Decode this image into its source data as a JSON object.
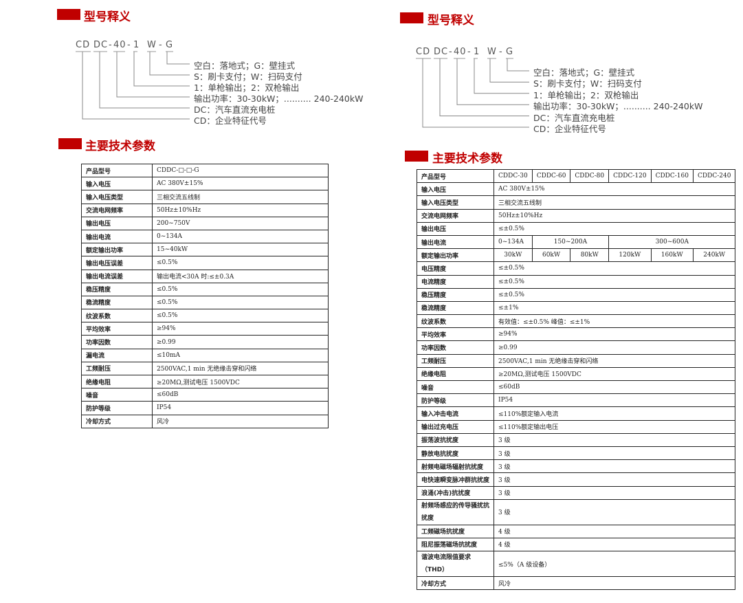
{
  "sections": {
    "model_title": "型号释义",
    "params_title": "主要技术参数"
  },
  "code": {
    "cd": "CD",
    "dc": "DC",
    "dash1": "-",
    "p40": "40",
    "dash2": "-",
    "one": "1",
    "w": "W",
    "dash3": "-",
    "g": "G"
  },
  "legend": [
    "空白：落地式；G：壁挂式",
    "S：刷卡支付；W：扫码支付",
    "1：单枪输出；2：双枪输出",
    "输出功率：30-30kW；.......... 240-240kW",
    "DC：汽车直流充电桩",
    "CD：企业特征代号"
  ],
  "accent": "#c00000",
  "left_table": [
    [
      "产品型号",
      "CDDC-□-□-G"
    ],
    [
      "输入电压",
      "AC   380V±15%"
    ],
    [
      "输入电压类型",
      "三相交流五线制"
    ],
    [
      "交流电网频率",
      "50Hz±10%Hz"
    ],
    [
      "输出电压",
      "200~750V"
    ],
    [
      "输出电流",
      "0~134A"
    ],
    [
      "额定输出功率",
      "15~40kW"
    ],
    [
      "输出电压误差",
      "≤0.5%"
    ],
    [
      "输出电流误差",
      "输出电流<30A 时:≤±0.3A"
    ],
    [
      "稳压精度",
      "≤0.5%"
    ],
    [
      "稳流精度",
      "≤0.5%"
    ],
    [
      "纹波系数",
      "≤0.5%"
    ],
    [
      "平均效率",
      "≥94%"
    ],
    [
      "功率因数",
      "≥0.99"
    ],
    [
      "漏电流",
      "≤10mA"
    ],
    [
      "工频耐压",
      "2500VAC,1 min 无绝缘击穿和闪络"
    ],
    [
      "绝缘电阻",
      "≥20MΩ,测试电压 1500VDC"
    ],
    [
      "噪音",
      "≤60dB"
    ],
    [
      "防护等级",
      "IP54"
    ],
    [
      "冷却方式",
      "风冷"
    ]
  ],
  "right_table": {
    "model_label": "产品型号",
    "models": [
      "CDDC-30",
      "CDDC-60",
      "CDDC-80",
      "CDDC-120",
      "CDDC-160",
      "CDDC-240"
    ],
    "rows_a": [
      [
        "输入电压",
        "AC   380V±15%"
      ],
      [
        "输入电压类型",
        "三相交流五线制"
      ],
      [
        "交流电网频率",
        "50Hz±10%Hz"
      ],
      [
        "输出电压",
        "≤±0.5%"
      ]
    ],
    "current_label": "输出电流",
    "currents": [
      "0~134A",
      "150~200A",
      "300~600A"
    ],
    "power_label": "额定输出功率",
    "powers": [
      "30kW",
      "60kW",
      "80kW",
      "120kW",
      "160kW",
      "240kW"
    ],
    "rows_b": [
      [
        "电压精度",
        "≤±0.5%"
      ],
      [
        "电流精度",
        "≤±0.5%"
      ],
      [
        "稳压精度",
        "≤±0.5%"
      ],
      [
        "稳流精度",
        "≤±1%"
      ],
      [
        "纹波系数",
        "有效值：≤±0.5%     峰值：≤±1%"
      ],
      [
        "平均效率",
        "≥94%"
      ],
      [
        "功率因数",
        "≥0.99"
      ],
      [
        "工频耐压",
        "2500VAC,1 min 无绝缘击穿和闪络"
      ],
      [
        "绝缘电阻",
        "≥20MΩ,测试电压 1500VDC"
      ],
      [
        "噪音",
        "≤60dB"
      ],
      [
        "防护等级",
        "IP54"
      ],
      [
        "输入冲击电流",
        "≤110%额定输入电流"
      ],
      [
        "输出过充电压",
        "≤110%额定输出电压"
      ],
      [
        "振荡波抗扰度",
        "3 级"
      ],
      [
        "静放电抗扰度",
        "3 级"
      ],
      [
        "射频电磁场辐射抗扰度",
        "3 级"
      ],
      [
        "电快速瞬变脉冲群抗扰度",
        "3 级"
      ],
      [
        "浪涌(冲击)抗扰度",
        "3 级"
      ],
      [
        "射频场感应的传导骚扰抗扰度",
        "3 级"
      ],
      [
        "工频磁场抗扰度",
        "4 级"
      ],
      [
        "阻尼振荡磁场抗扰度",
        "4 级"
      ],
      [
        "谐波电流限值要求（THD）",
        "≤5%（A 级设备）"
      ],
      [
        "冷却方式",
        "风冷"
      ]
    ]
  }
}
